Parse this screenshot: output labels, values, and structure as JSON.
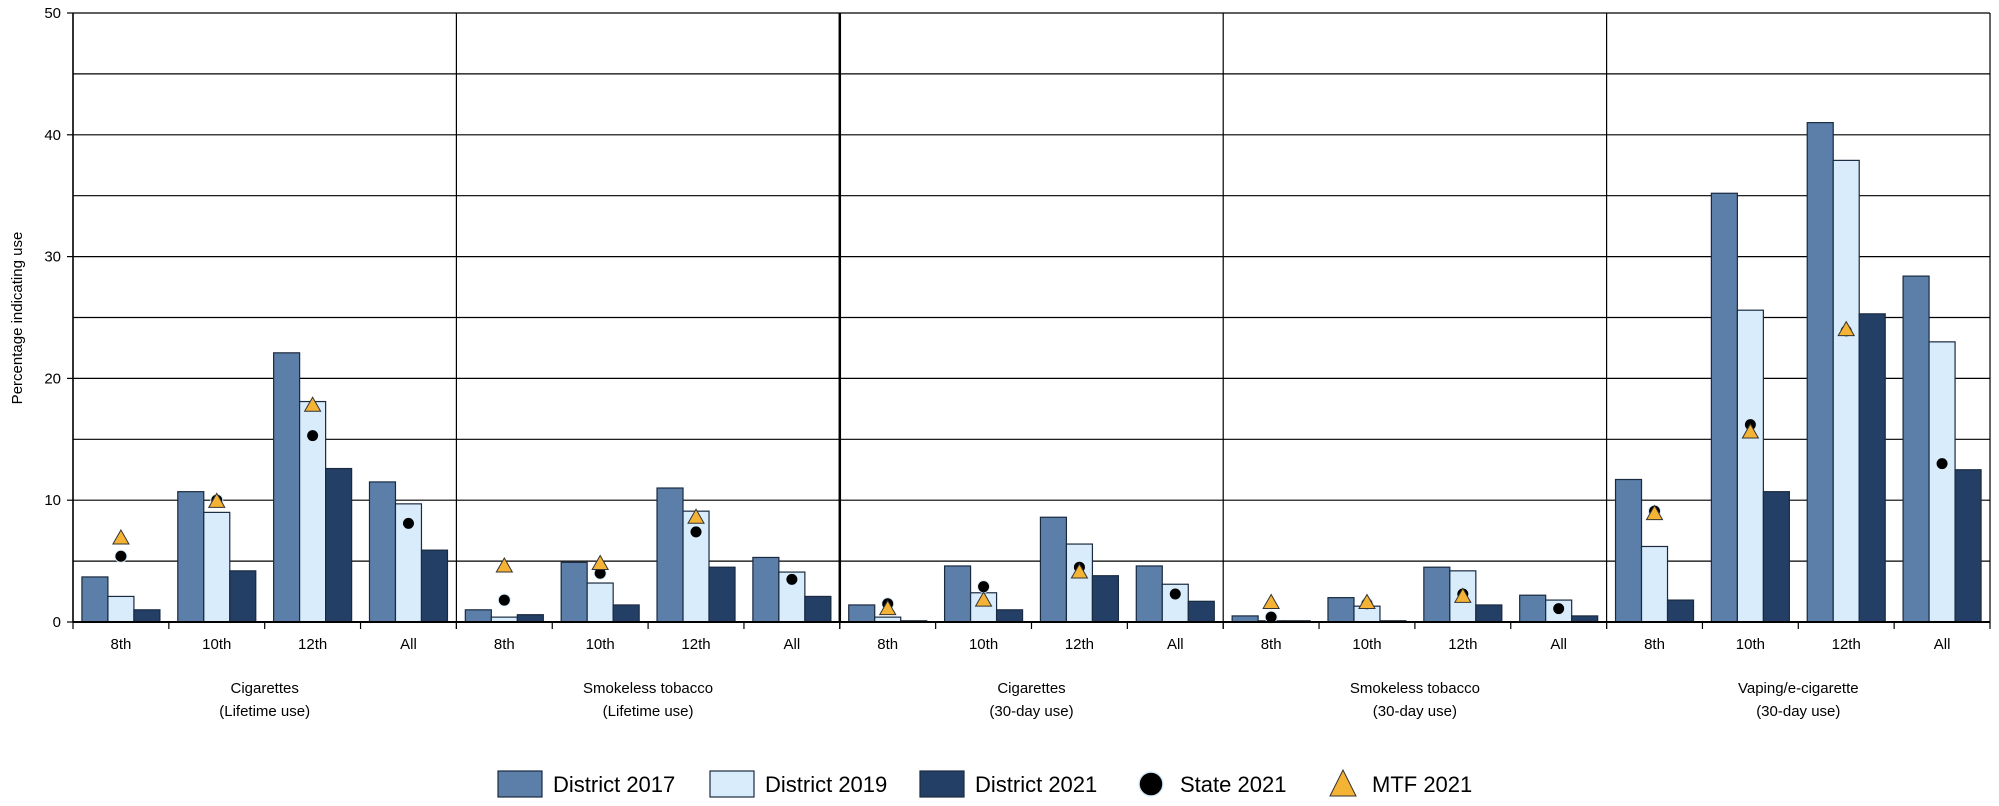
{
  "chart_data": {
    "type": "bar",
    "ylabel": "Percentage indicating use",
    "ylim": [
      0,
      50
    ],
    "y_ticks": [
      0,
      10,
      20,
      30,
      40,
      50
    ],
    "grid": true,
    "legend_placement": "bottom",
    "colors": {
      "District 2017": "#5b7fa8",
      "District 2019": "#d9ecfb",
      "District 2021": "#243f66",
      "State 2021": "#000000",
      "MTF 2021": "#f5b335"
    },
    "group_labels": [
      "8th",
      "10th",
      "12th",
      "All"
    ],
    "groups": [
      {
        "label_line1": "Cigarettes",
        "label_line2": "(Lifetime use)",
        "district_2017": [
          3.7,
          10.7,
          22.1,
          11.5
        ],
        "district_2019": [
          2.1,
          9.0,
          18.1,
          9.7
        ],
        "district_2021": [
          1.0,
          4.2,
          12.6,
          5.9
        ],
        "state_2021": [
          5.4,
          10.0,
          15.3,
          8.1
        ],
        "mtf_2021": [
          6.9,
          9.9,
          17.8,
          null
        ]
      },
      {
        "label_line1": "Smokeless tobacco",
        "label_line2": "(Lifetime use)",
        "district_2017": [
          1.0,
          4.9,
          11.0,
          5.3
        ],
        "district_2019": [
          0.4,
          3.2,
          9.1,
          4.1
        ],
        "district_2021": [
          0.6,
          1.4,
          4.5,
          2.1
        ],
        "state_2021": [
          1.8,
          4.0,
          7.4,
          3.5
        ],
        "mtf_2021": [
          4.6,
          4.8,
          8.6,
          null
        ]
      },
      {
        "label_line1": "Cigarettes",
        "label_line2": "(30-day use)",
        "district_2017": [
          1.4,
          4.6,
          8.6,
          4.6
        ],
        "district_2019": [
          0.4,
          2.4,
          6.4,
          3.1
        ],
        "district_2021": [
          0.1,
          1.0,
          3.8,
          1.7
        ],
        "state_2021": [
          1.5,
          2.9,
          4.5,
          2.3
        ],
        "mtf_2021": [
          1.1,
          1.8,
          4.1,
          null
        ]
      },
      {
        "label_line1": "Smokeless tobacco",
        "label_line2": "(30-day use)",
        "district_2017": [
          0.5,
          2.0,
          4.5,
          2.2
        ],
        "district_2019": [
          0.1,
          1.3,
          4.2,
          1.8
        ],
        "district_2021": [
          0.1,
          0.1,
          1.4,
          0.5
        ],
        "state_2021": [
          0.4,
          1.5,
          2.3,
          1.1
        ],
        "mtf_2021": [
          1.6,
          1.6,
          2.1,
          null
        ]
      },
      {
        "label_line1": "Vaping/e-cigarette",
        "label_line2": "(30-day use)",
        "district_2017": [
          11.7,
          35.2,
          41.0,
          28.4
        ],
        "district_2019": [
          6.2,
          25.6,
          37.9,
          23.0
        ],
        "district_2021": [
          1.8,
          10.7,
          25.3,
          12.5
        ],
        "state_2021": [
          9.1,
          16.2,
          23.9,
          13.0
        ],
        "mtf_2021": [
          8.9,
          15.6,
          24.0,
          null
        ]
      }
    ],
    "legend": {
      "district_2017": "District 2017",
      "district_2019": "District 2019",
      "district_2021": "District 2021",
      "state_2021": "State 2021",
      "mtf_2021": "MTF 2021"
    }
  }
}
